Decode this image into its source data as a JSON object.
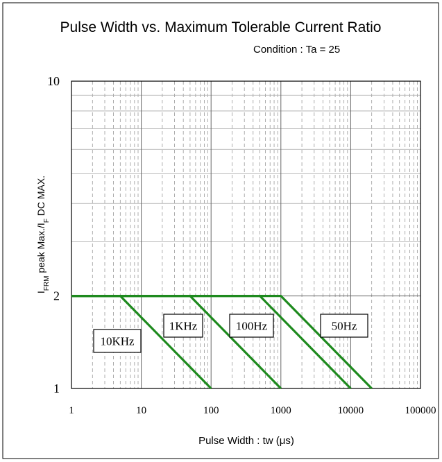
{
  "chart_data": {
    "type": "line",
    "title": "Pulse Width vs. Maximum Tolerable Current Ratio",
    "subtitle": "Condition : Ta = 25",
    "xlabel": "Pulse Width : tw (μs)",
    "ylabel_parts": [
      {
        "text": "I",
        "sub": false
      },
      {
        "text": "FRM",
        "sub": true
      },
      {
        "text": " peak Max./I",
        "sub": false
      },
      {
        "text": "F",
        "sub": true
      },
      {
        "text": " DC MAX.",
        "sub": false
      }
    ],
    "xscale": "log",
    "yscale": "log",
    "xlim": [
      1,
      100000
    ],
    "ylim": [
      1,
      10
    ],
    "xticks": [
      1,
      10,
      100,
      1000,
      10000,
      100000
    ],
    "yticks": [
      1,
      2,
      10
    ],
    "minor_xticks": [
      2,
      3,
      4,
      5,
      6,
      7,
      8,
      9,
      20,
      30,
      40,
      50,
      60,
      70,
      80,
      90,
      200,
      300,
      400,
      500,
      600,
      700,
      800,
      900,
      2000,
      3000,
      4000,
      5000,
      6000,
      7000,
      8000,
      9000,
      20000,
      30000,
      40000,
      50000,
      60000,
      70000,
      80000,
      90000
    ],
    "minor_yticks": [
      3,
      4,
      5,
      6,
      7,
      8,
      9
    ],
    "grid": true,
    "color": "#1e8a1e",
    "series": [
      {
        "name": "10KHz",
        "x": [
          1,
          5,
          100
        ],
        "y": [
          2,
          2,
          1
        ]
      },
      {
        "name": "1KHz",
        "x": [
          1,
          50,
          1000
        ],
        "y": [
          2,
          2,
          1
        ]
      },
      {
        "name": "100Hz",
        "x": [
          1,
          500,
          10000
        ],
        "y": [
          2,
          2,
          1
        ]
      },
      {
        "name": "50Hz",
        "x": [
          1,
          1000,
          20000
        ],
        "y": [
          2,
          2,
          1
        ]
      }
    ]
  }
}
